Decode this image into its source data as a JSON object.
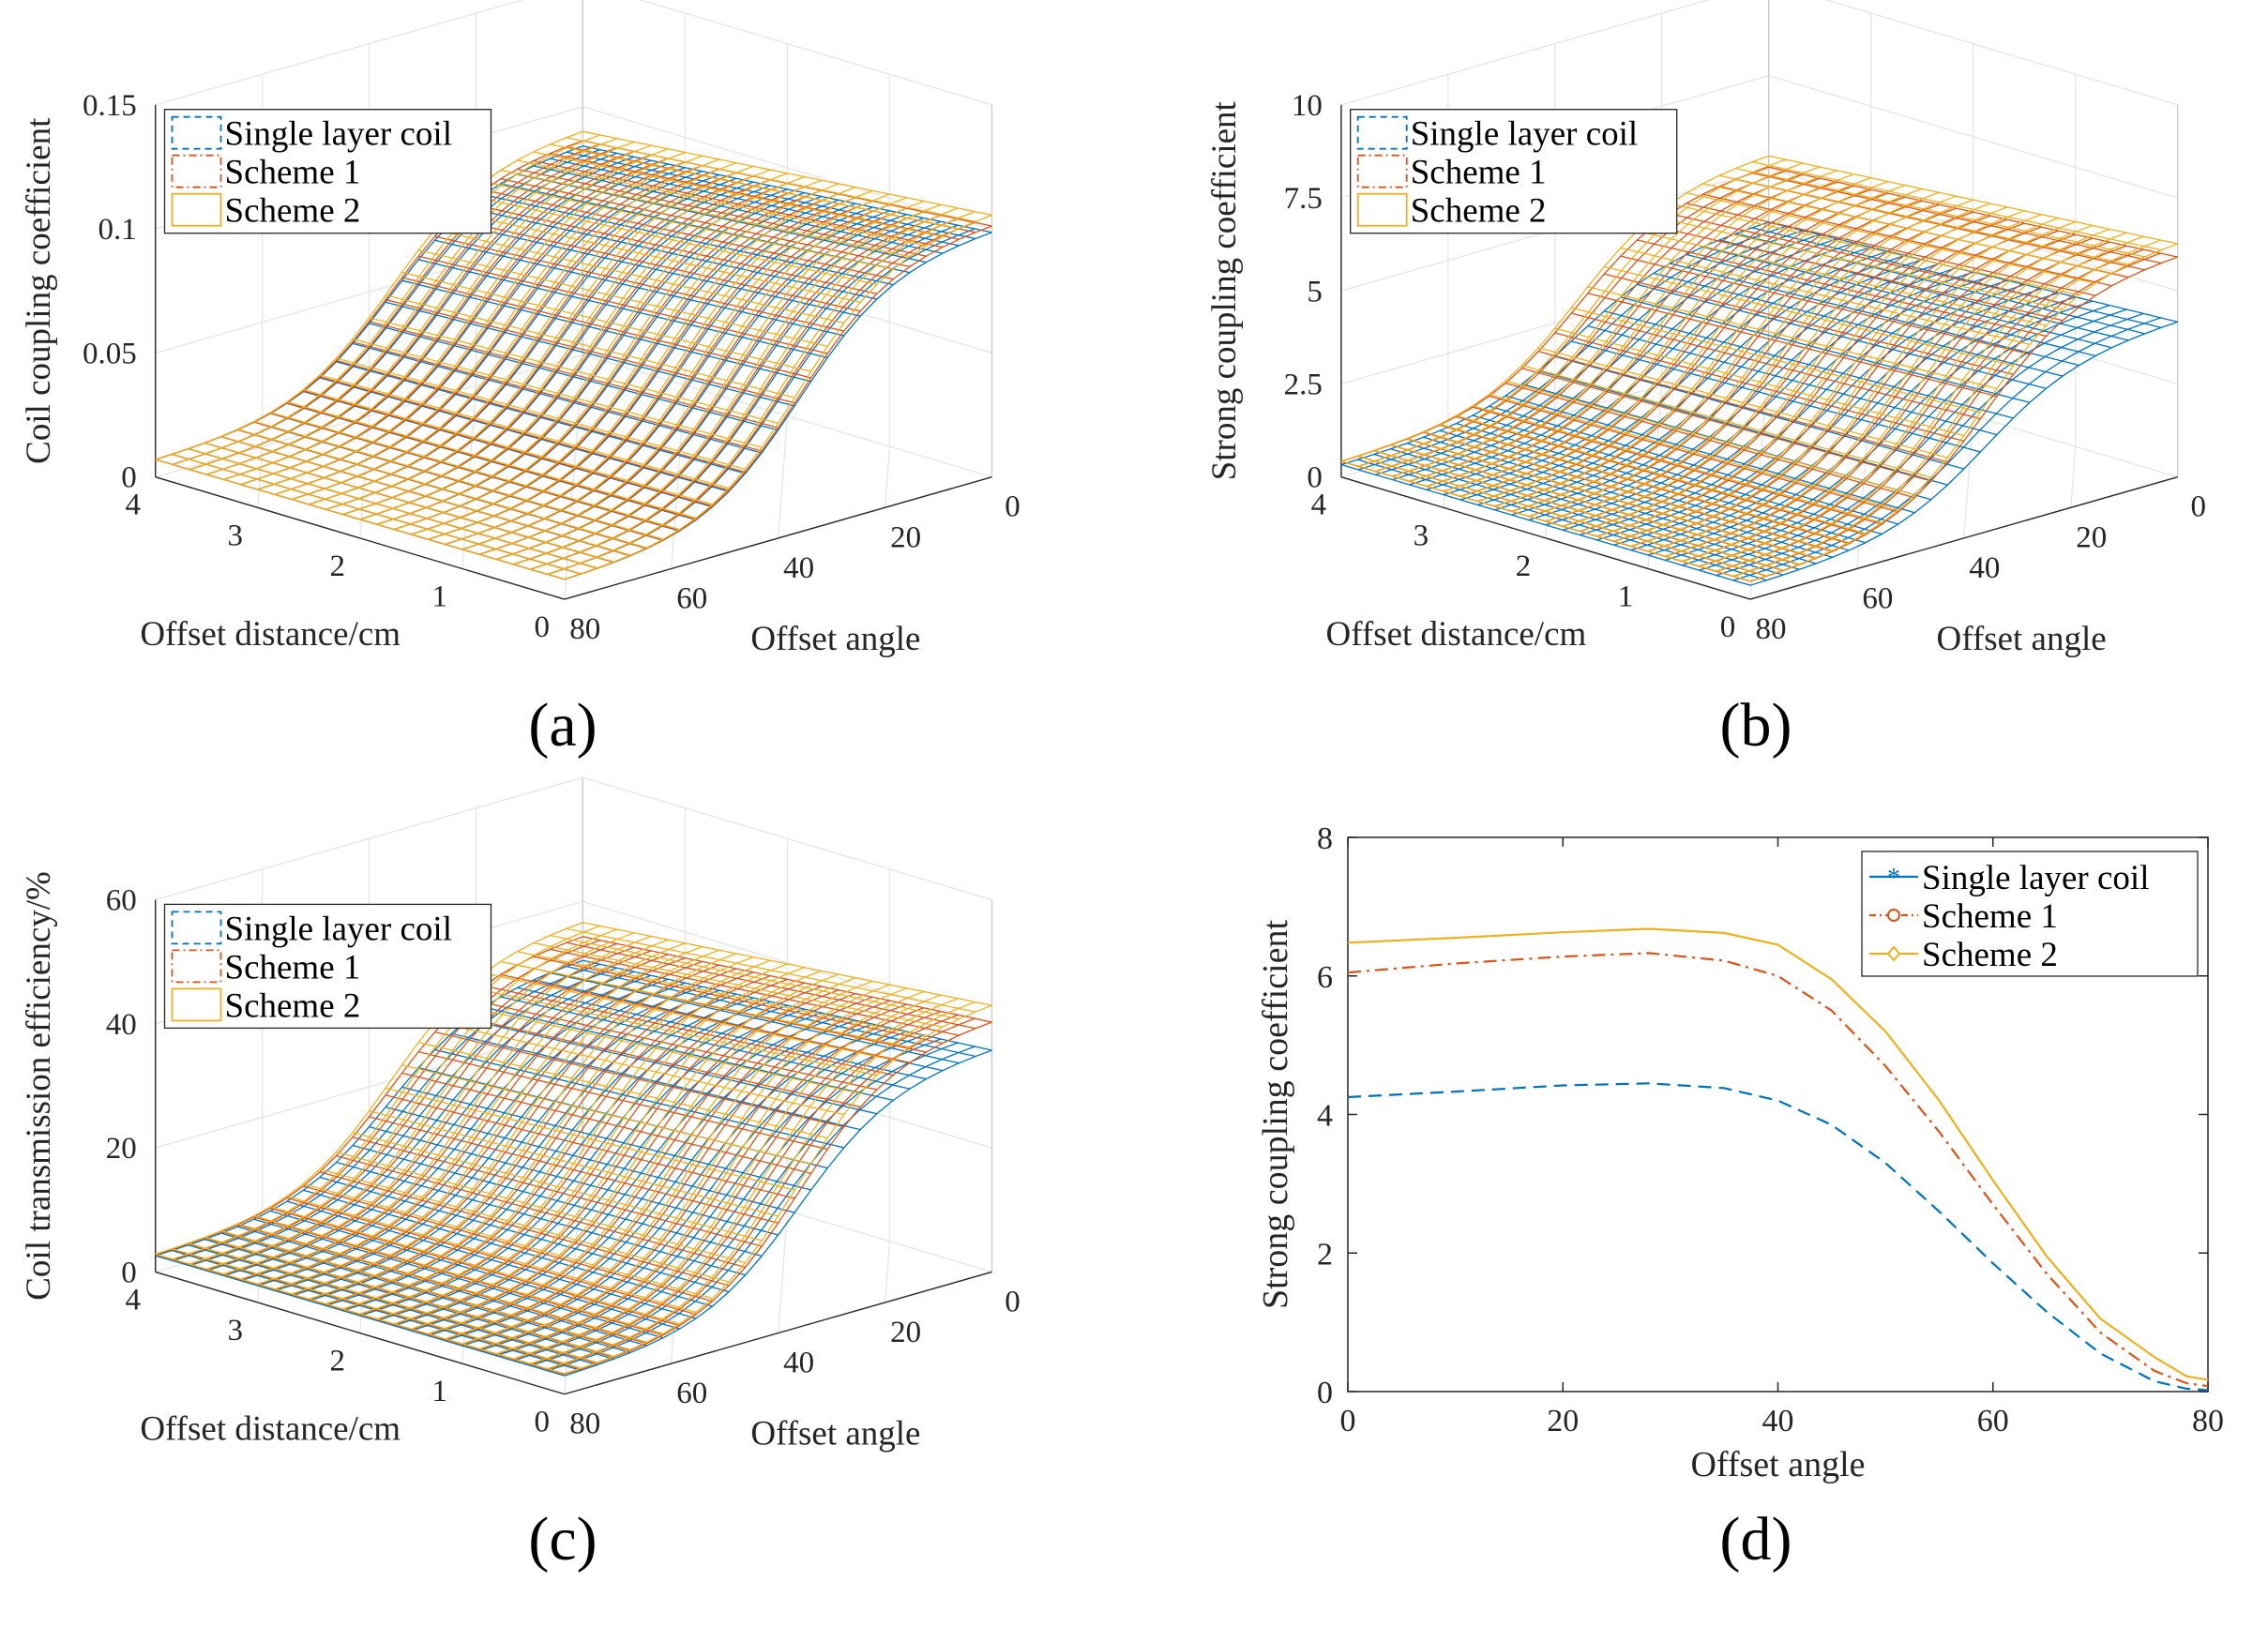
{
  "series_colors": {
    "Single layer coil": "#0072BD",
    "Scheme 1": "#D95319",
    "Scheme 2": "#EDB120"
  },
  "chart_data": [
    {
      "id": "a",
      "type": "surface",
      "panel_label": "(a)",
      "zlabel": "Coil coupling coefficient",
      "xlabel": "Offset distance/cm",
      "ylabel": "Offset angle",
      "x_ticks": [
        "0",
        "1",
        "2",
        "3",
        "4"
      ],
      "y_ticks": [
        "0",
        "20",
        "40",
        "60",
        "80"
      ],
      "z_ticks": [
        "0",
        "0.05",
        "0.1",
        "0.15"
      ],
      "zlim": [
        0,
        0.15
      ],
      "xlim": [
        0,
        4
      ],
      "ylim": [
        0,
        80
      ],
      "legend": [
        "Single layer coil",
        "Scheme 1",
        "Scheme 2"
      ],
      "series": [
        {
          "name": "Single layer coil",
          "peak": 0.105
        },
        {
          "name": "Scheme 1",
          "peak": 0.108
        },
        {
          "name": "Scheme 2",
          "peak": 0.113
        }
      ]
    },
    {
      "id": "b",
      "type": "surface",
      "panel_label": "(b)",
      "zlabel": "Strong coupling coefficient",
      "xlabel": "Offset distance/cm",
      "ylabel": "Offset angle",
      "x_ticks": [
        "0",
        "1",
        "2",
        "3",
        "4"
      ],
      "y_ticks": [
        "0",
        "20",
        "40",
        "60",
        "80"
      ],
      "z_ticks": [
        "0",
        "2.5",
        "5",
        "7.5",
        "10"
      ],
      "zlim": [
        0,
        10
      ],
      "xlim": [
        0,
        4
      ],
      "ylim": [
        0,
        80
      ],
      "legend": [
        "Single layer coil",
        "Scheme 1",
        "Scheme 2"
      ],
      "series": [
        {
          "name": "Single layer coil",
          "peak": 4.4
        },
        {
          "name": "Scheme 1",
          "peak": 6.3
        },
        {
          "name": "Scheme 2",
          "peak": 6.7
        }
      ]
    },
    {
      "id": "c",
      "type": "surface",
      "panel_label": "(c)",
      "zlabel": "Coil transmission efficiency/%",
      "xlabel": "Offset distance/cm",
      "ylabel": "Offset angle",
      "x_ticks": [
        "0",
        "1",
        "2",
        "3",
        "4"
      ],
      "y_ticks": [
        "0",
        "20",
        "40",
        "60",
        "80"
      ],
      "z_ticks": [
        "0",
        "20",
        "40",
        "60"
      ],
      "zlim": [
        0,
        60
      ],
      "xlim": [
        0,
        4
      ],
      "ylim": [
        0,
        80
      ],
      "legend": [
        "Single layer coil",
        "Scheme 1",
        "Scheme 2"
      ],
      "series": [
        {
          "name": "Single layer coil",
          "peak": 38
        },
        {
          "name": "Scheme 1",
          "peak": 43
        },
        {
          "name": "Scheme 2",
          "peak": 46
        }
      ]
    },
    {
      "id": "d",
      "type": "line",
      "panel_label": "(d)",
      "xlabel": "Offset angle",
      "ylabel": "Strong coupling coefficient",
      "xlim": [
        0,
        80
      ],
      "ylim": [
        0,
        8
      ],
      "x_ticks": [
        "0",
        "20",
        "40",
        "60",
        "80"
      ],
      "y_ticks": [
        "0",
        "2",
        "4",
        "6",
        "8"
      ],
      "legend": [
        "Single layer coil",
        "Scheme 1",
        "Scheme 2"
      ],
      "x": [
        0,
        10,
        20,
        28,
        35,
        40,
        45,
        50,
        55,
        60,
        65,
        70,
        75,
        78,
        80
      ],
      "series": [
        {
          "name": "Single layer coil",
          "style": "dashed",
          "marker": "*",
          "values": [
            4.25,
            4.33,
            4.42,
            4.45,
            4.38,
            4.2,
            3.85,
            3.3,
            2.6,
            1.85,
            1.15,
            0.55,
            0.15,
            0.04,
            0.02
          ]
        },
        {
          "name": "Scheme 1",
          "style": "dashdot",
          "marker": "o",
          "values": [
            6.05,
            6.18,
            6.28,
            6.33,
            6.22,
            6.0,
            5.5,
            4.7,
            3.75,
            2.7,
            1.7,
            0.85,
            0.3,
            0.12,
            0.08
          ]
        },
        {
          "name": "Scheme 2",
          "style": "solid",
          "marker": "d",
          "values": [
            6.48,
            6.55,
            6.63,
            6.68,
            6.62,
            6.45,
            5.95,
            5.2,
            4.2,
            3.05,
            1.95,
            1.05,
            0.5,
            0.22,
            0.17
          ]
        }
      ]
    }
  ]
}
